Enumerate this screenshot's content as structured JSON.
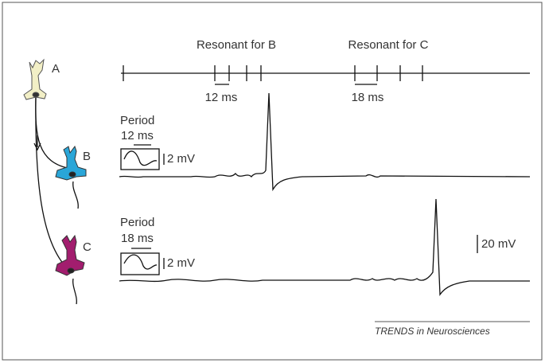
{
  "neurons": [
    {
      "label": "A"
    },
    {
      "label": "B"
    },
    {
      "label": "C"
    }
  ],
  "spike_train": {
    "annotations": [
      {
        "label": "Resonant for B",
        "interval": "12 ms"
      },
      {
        "label": "Resonant for C",
        "interval": "18 ms"
      }
    ]
  },
  "traces": [
    {
      "period_label": "Period",
      "period": "12 ms",
      "amplitude": "2 mV"
    },
    {
      "period_label": "Period",
      "period": "18 ms",
      "amplitude": "2 mV"
    }
  ],
  "scale_bar": "20 mV",
  "footer": "TRENDS in Neurosciences"
}
